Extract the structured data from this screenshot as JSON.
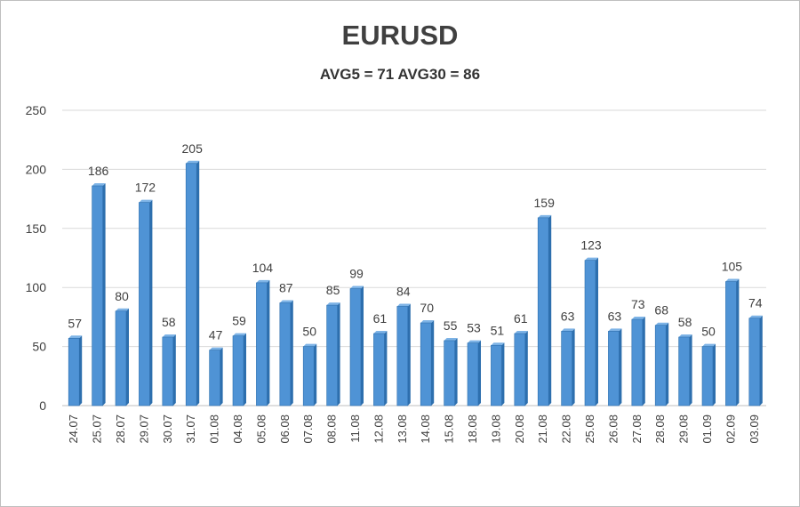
{
  "chart_data": {
    "type": "bar",
    "title": "EURUSD",
    "subtitle": "AVG5 = 71 AVG30 = 86",
    "xlabel": "",
    "ylabel": "",
    "ylim": [
      0,
      250
    ],
    "yticks": [
      0,
      50,
      100,
      150,
      200,
      250
    ],
    "grid": true,
    "categories": [
      "24.07",
      "25.07",
      "28.07",
      "29.07",
      "30.07",
      "31.07",
      "01.08",
      "04.08",
      "05.08",
      "06.08",
      "07.08",
      "08.08",
      "11.08",
      "12.08",
      "13.08",
      "14.08",
      "15.08",
      "18.08",
      "19.08",
      "20.08",
      "21.08",
      "22.08",
      "25.08",
      "26.08",
      "27.08",
      "28.08",
      "29.08",
      "01.09",
      "02.09",
      "03.09"
    ],
    "values": [
      57,
      186,
      80,
      172,
      58,
      205,
      47,
      59,
      104,
      87,
      50,
      85,
      99,
      61,
      84,
      70,
      55,
      53,
      51,
      61,
      159,
      63,
      123,
      63,
      73,
      68,
      58,
      50,
      105,
      74
    ],
    "colors": {
      "bar": "#4f93d5",
      "bar_dark": "#2d6fae",
      "bar_top": "#7db3e6",
      "grid": "#d9d9d9"
    }
  }
}
